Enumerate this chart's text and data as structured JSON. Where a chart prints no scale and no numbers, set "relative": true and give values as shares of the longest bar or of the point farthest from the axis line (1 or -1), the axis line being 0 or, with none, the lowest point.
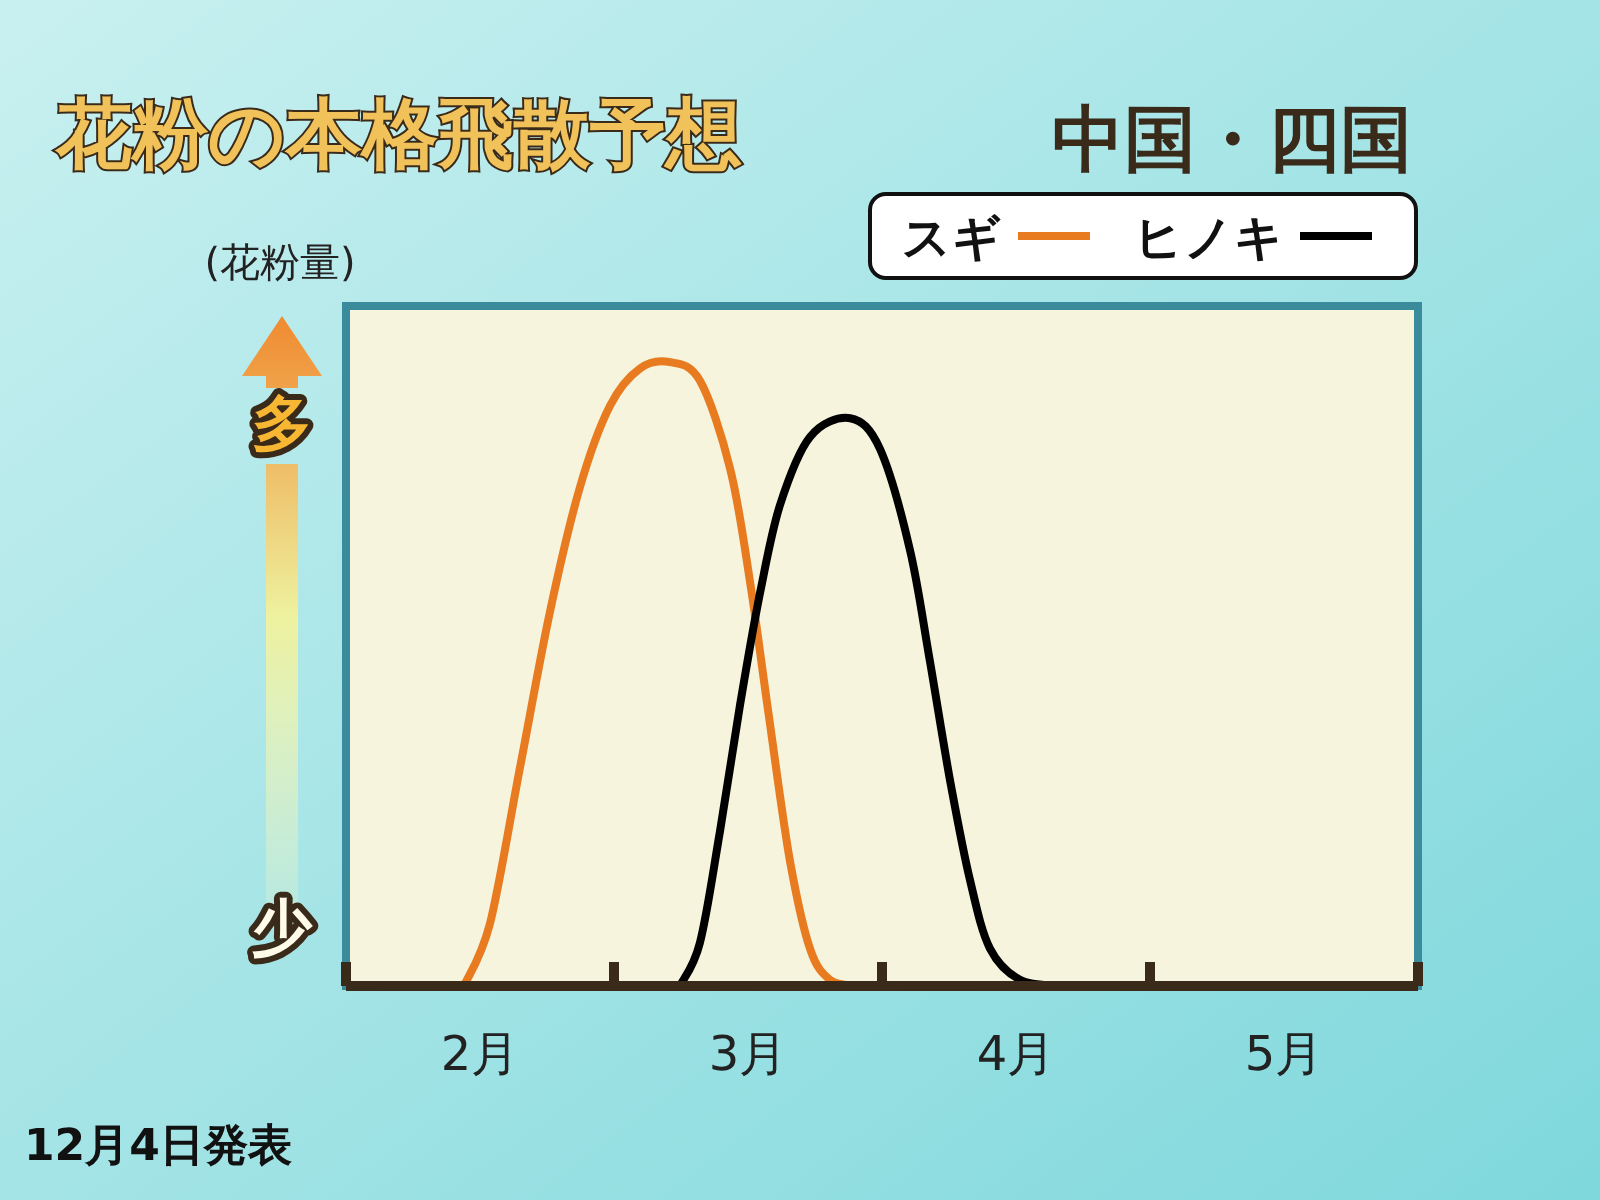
{
  "chart_data": {
    "type": "line",
    "title": "花粉の本格飛散予想",
    "subtitle": "中国・四国",
    "ylabel": "(花粉量)",
    "annotations": [
      "多",
      "少",
      "12月4日発表"
    ],
    "relative": true,
    "legend": "top right",
    "xlim": [
      1.5,
      5.5
    ],
    "xticks": [
      {
        "value": 1.5,
        "label": null
      },
      {
        "value": 2,
        "label": "2月"
      },
      {
        "value": 2.5,
        "label": null
      },
      {
        "value": 3,
        "label": "3月"
      },
      {
        "value": 3.5,
        "label": null
      },
      {
        "value": 4,
        "label": "4月"
      },
      {
        "value": 4.5,
        "label": null
      },
      {
        "value": 5,
        "label": "5月"
      },
      {
        "value": 5.5,
        "label": null
      }
    ],
    "series": [
      {
        "name": "スギ",
        "color": "#e87a20",
        "x": [
          1.94,
          2.037,
          2.149,
          2.261,
          2.373,
          2.485,
          2.597,
          2.709,
          2.821,
          2.933,
          3.007,
          3.082,
          3.157,
          3.231,
          3.306,
          3.403
        ],
        "values": [
          0,
          0.1,
          0.35,
          0.6,
          0.8,
          0.93,
          0.99,
          1.0,
          0.97,
          0.83,
          0.65,
          0.42,
          0.2,
          0.06,
          0.01,
          0
        ]
      },
      {
        "name": "ヒノキ",
        "color": "#000000",
        "x": [
          2.746,
          2.821,
          2.896,
          2.97,
          3.045,
          3.119,
          3.231,
          3.381,
          3.493,
          3.604,
          3.679,
          3.754,
          3.828,
          3.903,
          4.015,
          4.164
        ],
        "values": [
          0,
          0.07,
          0.25,
          0.45,
          0.63,
          0.77,
          0.88,
          0.91,
          0.86,
          0.7,
          0.52,
          0.33,
          0.17,
          0.06,
          0.01,
          0
        ]
      }
    ]
  }
}
